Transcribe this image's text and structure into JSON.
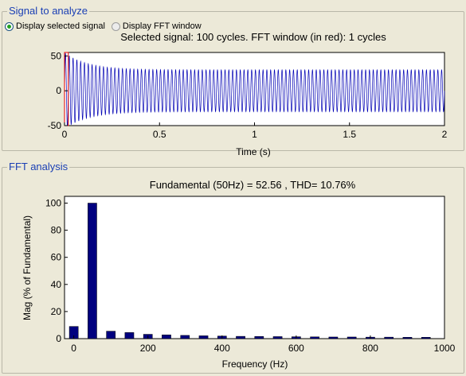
{
  "signal_panel": {
    "title": "Signal to analyze",
    "radio_selected_label": "Display selected signal",
    "radio_fft_label": "Display FFT window",
    "info_text": "Selected signal: 100 cycles. FFT window (in red): 1 cycles"
  },
  "fft_panel": {
    "title": "FFT analysis",
    "summary_text": "Fundamental (50Hz) = 52.56 , THD= 10.76%"
  },
  "colors": {
    "signal": "#0000b4",
    "fft_window": "#e00000",
    "bars": "#00007f",
    "group_title": "#1a3fb4"
  },
  "chart_data": [
    {
      "type": "line",
      "title": "Selected signal: 100 cycles. FFT window (in red): 1 cycles",
      "xlabel": "Time (s)",
      "ylabel": "",
      "xlim": [
        0,
        2
      ],
      "ylim": [
        -50,
        55
      ],
      "xticks": [
        0,
        0.5,
        1,
        1.5,
        2
      ],
      "xtick_labels": [
        "0",
        "0.5",
        "1",
        "1.5",
        "2"
      ],
      "yticks": [
        -50,
        0,
        50
      ],
      "ytick_labels": [
        "-50",
        "0",
        "50"
      ],
      "series": [
        {
          "frequency_hz": 50,
          "amplitude_initial": 55,
          "amplitude_steady": 30,
          "decay_time_s": 0.12
        }
      ],
      "fft_window": {
        "start": 0,
        "end": 0.02
      },
      "grid": false
    },
    {
      "type": "bar",
      "title": "Fundamental (50Hz) = 52.56 , THD= 10.76%",
      "xlabel": "Frequency (Hz)",
      "ylabel": "Mag (% of Fundamental)",
      "xlim": [
        -25,
        1000
      ],
      "ylim": [
        0,
        105
      ],
      "xticks": [
        0,
        200,
        400,
        600,
        800,
        1000
      ],
      "xtick_labels": [
        "0",
        "200",
        "400",
        "600",
        "800",
        "1000"
      ],
      "yticks": [
        0,
        20,
        40,
        60,
        80,
        100
      ],
      "ytick_labels": [
        "0",
        "20",
        "40",
        "60",
        "80",
        "100"
      ],
      "x": [
        0,
        50,
        100,
        150,
        200,
        250,
        300,
        350,
        400,
        450,
        500,
        550,
        600,
        650,
        700,
        750,
        800,
        850,
        900,
        950
      ],
      "values": [
        9,
        100,
        5.5,
        4.5,
        3.2,
        2.8,
        2.4,
        2.1,
        1.9,
        1.7,
        1.6,
        1.5,
        1.4,
        1.3,
        1.2,
        1.2,
        1.1,
        1.1,
        1.0,
        1.0
      ],
      "bar_width_hz": 24,
      "grid": false
    }
  ]
}
